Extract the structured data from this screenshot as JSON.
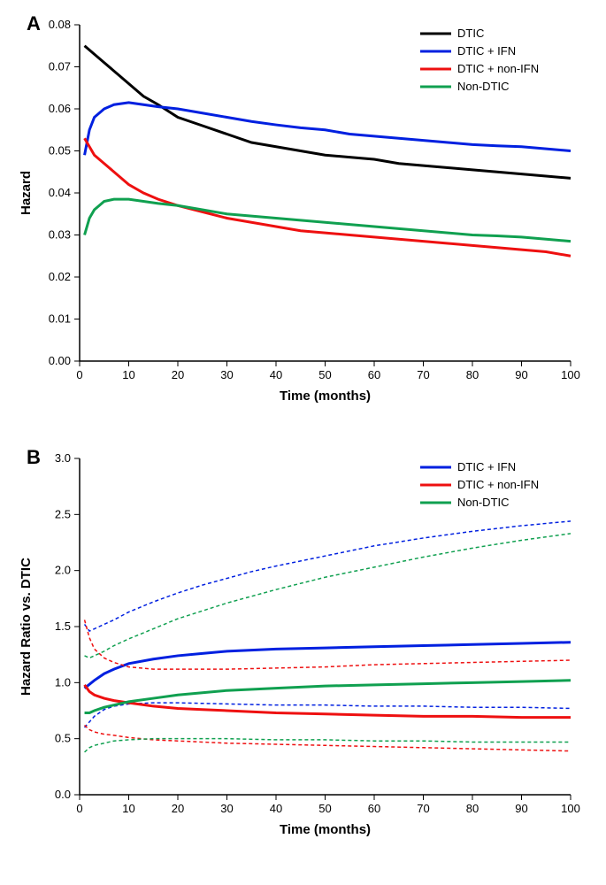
{
  "panel_a": {
    "panel_label": "A",
    "xlabel": "Time (months)",
    "ylabel": "Hazard",
    "xlim": [
      0,
      100
    ],
    "ylim": [
      0,
      0.08
    ],
    "xticks": [
      0,
      10,
      20,
      30,
      40,
      50,
      60,
      70,
      80,
      90,
      100
    ],
    "yticks": [
      0.0,
      0.01,
      0.02,
      0.03,
      0.04,
      0.05,
      0.06,
      0.07,
      0.08
    ],
    "ytick_labels": [
      "0.00",
      "0.01",
      "0.02",
      "0.03",
      "0.04",
      "0.05",
      "0.06",
      "0.07",
      "0.08"
    ],
    "label_fontsize": 15,
    "tick_fontsize": 13,
    "series": [
      {
        "name": "DTIC",
        "color": "#000000",
        "data": [
          [
            1,
            0.075
          ],
          [
            3,
            0.073
          ],
          [
            5,
            0.071
          ],
          [
            8,
            0.068
          ],
          [
            10,
            0.066
          ],
          [
            13,
            0.063
          ],
          [
            16,
            0.061
          ],
          [
            20,
            0.058
          ],
          [
            25,
            0.056
          ],
          [
            30,
            0.054
          ],
          [
            35,
            0.052
          ],
          [
            40,
            0.051
          ],
          [
            45,
            0.05
          ],
          [
            50,
            0.049
          ],
          [
            55,
            0.0485
          ],
          [
            60,
            0.048
          ],
          [
            65,
            0.047
          ],
          [
            70,
            0.0465
          ],
          [
            75,
            0.046
          ],
          [
            80,
            0.0455
          ],
          [
            85,
            0.045
          ],
          [
            90,
            0.0445
          ],
          [
            95,
            0.044
          ],
          [
            100,
            0.0435
          ]
        ]
      },
      {
        "name": "DTIC + IFN",
        "color": "#0020e0",
        "data": [
          [
            1,
            0.049
          ],
          [
            2,
            0.055
          ],
          [
            3,
            0.058
          ],
          [
            5,
            0.06
          ],
          [
            7,
            0.061
          ],
          [
            10,
            0.0615
          ],
          [
            13,
            0.061
          ],
          [
            16,
            0.0605
          ],
          [
            20,
            0.06
          ],
          [
            25,
            0.059
          ],
          [
            30,
            0.058
          ],
          [
            35,
            0.057
          ],
          [
            40,
            0.0562
          ],
          [
            45,
            0.0555
          ],
          [
            50,
            0.055
          ],
          [
            55,
            0.054
          ],
          [
            60,
            0.0535
          ],
          [
            65,
            0.053
          ],
          [
            70,
            0.0525
          ],
          [
            75,
            0.052
          ],
          [
            80,
            0.0515
          ],
          [
            85,
            0.0512
          ],
          [
            90,
            0.051
          ],
          [
            95,
            0.0505
          ],
          [
            100,
            0.05
          ]
        ]
      },
      {
        "name": "DTIC + non-IFN",
        "color": "#ee1010",
        "data": [
          [
            1,
            0.053
          ],
          [
            2,
            0.051
          ],
          [
            3,
            0.049
          ],
          [
            5,
            0.047
          ],
          [
            7,
            0.045
          ],
          [
            10,
            0.042
          ],
          [
            13,
            0.04
          ],
          [
            16,
            0.0385
          ],
          [
            20,
            0.037
          ],
          [
            25,
            0.0355
          ],
          [
            30,
            0.034
          ],
          [
            35,
            0.033
          ],
          [
            40,
            0.032
          ],
          [
            45,
            0.031
          ],
          [
            50,
            0.0305
          ],
          [
            55,
            0.03
          ],
          [
            60,
            0.0295
          ],
          [
            65,
            0.029
          ],
          [
            70,
            0.0285
          ],
          [
            75,
            0.028
          ],
          [
            80,
            0.0275
          ],
          [
            85,
            0.027
          ],
          [
            90,
            0.0265
          ],
          [
            95,
            0.026
          ],
          [
            100,
            0.025
          ]
        ]
      },
      {
        "name": "Non-DTIC",
        "color": "#10a050",
        "data": [
          [
            1,
            0.03
          ],
          [
            2,
            0.034
          ],
          [
            3,
            0.036
          ],
          [
            5,
            0.038
          ],
          [
            7,
            0.0385
          ],
          [
            10,
            0.0385
          ],
          [
            13,
            0.038
          ],
          [
            16,
            0.0375
          ],
          [
            20,
            0.037
          ],
          [
            25,
            0.036
          ],
          [
            30,
            0.035
          ],
          [
            35,
            0.0345
          ],
          [
            40,
            0.034
          ],
          [
            45,
            0.0335
          ],
          [
            50,
            0.033
          ],
          [
            55,
            0.0325
          ],
          [
            60,
            0.032
          ],
          [
            65,
            0.0315
          ],
          [
            70,
            0.031
          ],
          [
            75,
            0.0305
          ],
          [
            80,
            0.03
          ],
          [
            85,
            0.0298
          ],
          [
            90,
            0.0295
          ],
          [
            95,
            0.029
          ],
          [
            100,
            0.0285
          ]
        ]
      }
    ]
  },
  "panel_b": {
    "panel_label": "B",
    "xlabel": "Time (months)",
    "ylabel": "Hazard Ratio vs. DTIC",
    "xlim": [
      0,
      100
    ],
    "ylim": [
      0,
      3.0
    ],
    "xticks": [
      0,
      10,
      20,
      30,
      40,
      50,
      60,
      70,
      80,
      90,
      100
    ],
    "yticks": [
      0.0,
      0.5,
      1.0,
      1.5,
      2.0,
      2.5,
      3.0
    ],
    "ytick_labels": [
      "0.0",
      "0.5",
      "1.0",
      "1.5",
      "2.0",
      "2.5",
      "3.0"
    ],
    "label_fontsize": 15,
    "tick_fontsize": 13,
    "series": [
      {
        "name": "DTIC + IFN",
        "color": "#0020e0",
        "data": [
          [
            1,
            0.95
          ],
          [
            3,
            1.02
          ],
          [
            5,
            1.08
          ],
          [
            7,
            1.12
          ],
          [
            10,
            1.17
          ],
          [
            15,
            1.21
          ],
          [
            20,
            1.24
          ],
          [
            25,
            1.26
          ],
          [
            30,
            1.28
          ],
          [
            35,
            1.29
          ],
          [
            40,
            1.3
          ],
          [
            50,
            1.31
          ],
          [
            60,
            1.32
          ],
          [
            70,
            1.33
          ],
          [
            80,
            1.34
          ],
          [
            90,
            1.35
          ],
          [
            100,
            1.36
          ]
        ],
        "ci_upper": [
          [
            1,
            1.52
          ],
          [
            2,
            1.46
          ],
          [
            3,
            1.48
          ],
          [
            5,
            1.52
          ],
          [
            7,
            1.56
          ],
          [
            10,
            1.63
          ],
          [
            15,
            1.72
          ],
          [
            20,
            1.8
          ],
          [
            25,
            1.87
          ],
          [
            30,
            1.93
          ],
          [
            35,
            1.99
          ],
          [
            40,
            2.04
          ],
          [
            50,
            2.13
          ],
          [
            60,
            2.22
          ],
          [
            70,
            2.29
          ],
          [
            80,
            2.35
          ],
          [
            90,
            2.4
          ],
          [
            100,
            2.44
          ]
        ],
        "ci_lower": [
          [
            1,
            0.6
          ],
          [
            3,
            0.7
          ],
          [
            5,
            0.76
          ],
          [
            7,
            0.79
          ],
          [
            10,
            0.81
          ],
          [
            15,
            0.82
          ],
          [
            20,
            0.82
          ],
          [
            30,
            0.81
          ],
          [
            40,
            0.8
          ],
          [
            50,
            0.8
          ],
          [
            60,
            0.79
          ],
          [
            70,
            0.79
          ],
          [
            80,
            0.78
          ],
          [
            90,
            0.78
          ],
          [
            100,
            0.77
          ]
        ]
      },
      {
        "name": "DTIC + non-IFN",
        "color": "#ee1010",
        "data": [
          [
            1,
            0.98
          ],
          [
            2,
            0.92
          ],
          [
            3,
            0.89
          ],
          [
            5,
            0.86
          ],
          [
            7,
            0.84
          ],
          [
            10,
            0.82
          ],
          [
            15,
            0.79
          ],
          [
            20,
            0.77
          ],
          [
            25,
            0.76
          ],
          [
            30,
            0.75
          ],
          [
            40,
            0.73
          ],
          [
            50,
            0.72
          ],
          [
            60,
            0.71
          ],
          [
            70,
            0.7
          ],
          [
            80,
            0.7
          ],
          [
            90,
            0.69
          ],
          [
            100,
            0.69
          ]
        ],
        "ci_upper": [
          [
            1,
            1.56
          ],
          [
            2,
            1.4
          ],
          [
            3,
            1.3
          ],
          [
            5,
            1.22
          ],
          [
            7,
            1.18
          ],
          [
            10,
            1.14
          ],
          [
            15,
            1.12
          ],
          [
            20,
            1.12
          ],
          [
            25,
            1.12
          ],
          [
            30,
            1.12
          ],
          [
            40,
            1.13
          ],
          [
            50,
            1.14
          ],
          [
            60,
            1.16
          ],
          [
            70,
            1.17
          ],
          [
            80,
            1.18
          ],
          [
            90,
            1.19
          ],
          [
            100,
            1.2
          ]
        ],
        "ci_lower": [
          [
            1,
            0.62
          ],
          [
            2,
            0.58
          ],
          [
            3,
            0.56
          ],
          [
            5,
            0.54
          ],
          [
            7,
            0.53
          ],
          [
            10,
            0.51
          ],
          [
            15,
            0.49
          ],
          [
            20,
            0.48
          ],
          [
            25,
            0.47
          ],
          [
            30,
            0.46
          ],
          [
            40,
            0.45
          ],
          [
            50,
            0.44
          ],
          [
            60,
            0.43
          ],
          [
            70,
            0.42
          ],
          [
            80,
            0.41
          ],
          [
            90,
            0.4
          ],
          [
            100,
            0.39
          ]
        ]
      },
      {
        "name": "Non-DTIC",
        "color": "#10a050",
        "data": [
          [
            1,
            0.73
          ],
          [
            2,
            0.73
          ],
          [
            3,
            0.75
          ],
          [
            5,
            0.78
          ],
          [
            7,
            0.8
          ],
          [
            10,
            0.83
          ],
          [
            15,
            0.86
          ],
          [
            20,
            0.89
          ],
          [
            25,
            0.91
          ],
          [
            30,
            0.93
          ],
          [
            40,
            0.95
          ],
          [
            50,
            0.97
          ],
          [
            60,
            0.98
          ],
          [
            70,
            0.99
          ],
          [
            80,
            1.0
          ],
          [
            90,
            1.01
          ],
          [
            100,
            1.02
          ]
        ],
        "ci_upper": [
          [
            1,
            1.24
          ],
          [
            2,
            1.22
          ],
          [
            3,
            1.24
          ],
          [
            5,
            1.28
          ],
          [
            7,
            1.33
          ],
          [
            10,
            1.39
          ],
          [
            15,
            1.48
          ],
          [
            20,
            1.57
          ],
          [
            25,
            1.64
          ],
          [
            30,
            1.71
          ],
          [
            35,
            1.77
          ],
          [
            40,
            1.83
          ],
          [
            50,
            1.94
          ],
          [
            60,
            2.03
          ],
          [
            70,
            2.12
          ],
          [
            80,
            2.2
          ],
          [
            90,
            2.27
          ],
          [
            100,
            2.33
          ]
        ],
        "ci_lower": [
          [
            1,
            0.38
          ],
          [
            2,
            0.42
          ],
          [
            3,
            0.44
          ],
          [
            5,
            0.46
          ],
          [
            7,
            0.48
          ],
          [
            10,
            0.49
          ],
          [
            15,
            0.5
          ],
          [
            20,
            0.5
          ],
          [
            25,
            0.5
          ],
          [
            30,
            0.5
          ],
          [
            40,
            0.49
          ],
          [
            50,
            0.49
          ],
          [
            60,
            0.48
          ],
          [
            70,
            0.48
          ],
          [
            80,
            0.47
          ],
          [
            90,
            0.47
          ],
          [
            100,
            0.47
          ]
        ]
      }
    ]
  },
  "colors": {
    "background": "#ffffff",
    "axis": "#000000"
  }
}
